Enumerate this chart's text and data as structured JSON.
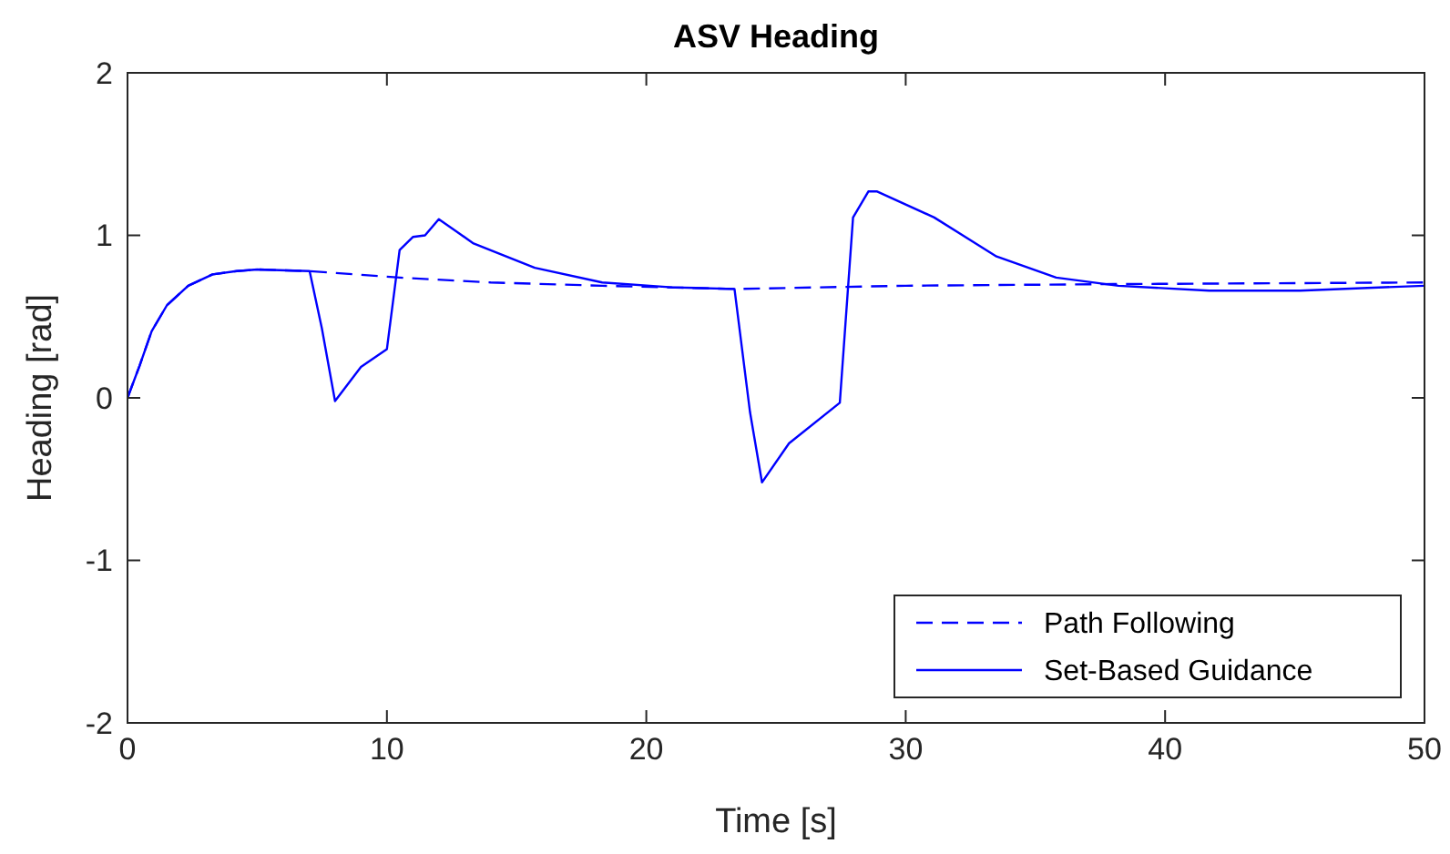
{
  "chart_data": {
    "type": "line",
    "title": "ASV Heading",
    "xlabel": "Time [s]",
    "ylabel": "Heading [rad]",
    "xlim": [
      0,
      50
    ],
    "ylim": [
      -2,
      2
    ],
    "xticks": [
      0,
      10,
      20,
      30,
      40,
      50
    ],
    "yticks": [
      -2,
      -1,
      0,
      1,
      2
    ],
    "grid": false,
    "legend": "bottom right",
    "series": [
      {
        "name": "Path Following",
        "color": "#0000ff",
        "line_style": "dashed",
        "x": [
          0,
          0.47,
          0.93,
          1.52,
          2.34,
          3.28,
          4.21,
          5,
          7.02,
          10.5,
          14,
          18.3,
          23.4,
          30,
          38,
          50
        ],
        "values": [
          0,
          0.2,
          0.41,
          0.57,
          0.69,
          0.76,
          0.78,
          0.79,
          0.78,
          0.74,
          0.71,
          0.69,
          0.67,
          0.69,
          0.7,
          0.71
        ]
      },
      {
        "name": "Set-Based Guidance",
        "color": "#0000ff",
        "line_style": "solid",
        "x": [
          0,
          0.47,
          0.93,
          1.52,
          2.34,
          3.28,
          4.21,
          5,
          7.02,
          7.49,
          8.0,
          9.0,
          10.0,
          10.49,
          11.0,
          11.47,
          12.0,
          13.34,
          15.7,
          18.3,
          21,
          23.4,
          24.0,
          24.46,
          25.5,
          27.46,
          27.97,
          28.56,
          28.9,
          31.1,
          33.5,
          35.8,
          38.2,
          41.7,
          45.2,
          50
        ],
        "values": [
          0,
          0.2,
          0.41,
          0.57,
          0.69,
          0.76,
          0.78,
          0.79,
          0.78,
          0.43,
          -0.02,
          0.19,
          0.3,
          0.91,
          0.99,
          1.0,
          1.1,
          0.95,
          0.8,
          0.71,
          0.68,
          0.67,
          -0.09,
          -0.52,
          -0.28,
          -0.03,
          1.11,
          1.27,
          1.27,
          1.11,
          0.87,
          0.74,
          0.69,
          0.66,
          0.66,
          0.69
        ]
      }
    ]
  }
}
